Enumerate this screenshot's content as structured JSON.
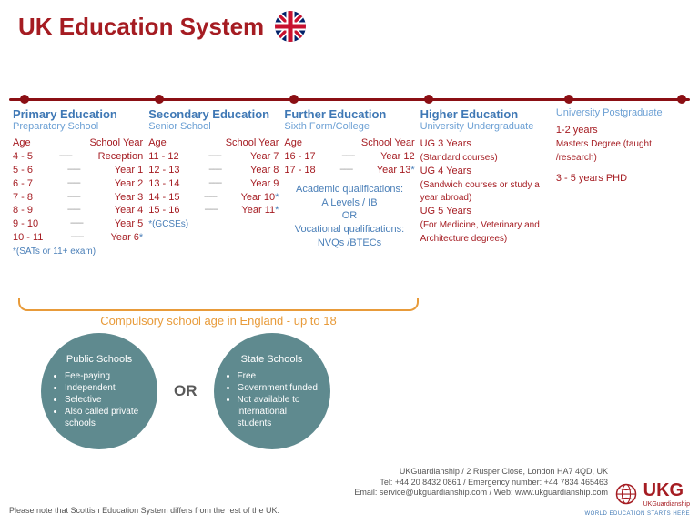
{
  "colors": {
    "title": "#a51c22",
    "timeline": "#8b0f14",
    "stage_title": "#3f78b5",
    "stage_sub": "#6ca0d4",
    "text_dark": "#a51c22",
    "text_blue": "#4a7fb8",
    "brace": "#e89b3a",
    "brace_text": "#e89b3a",
    "circle_bg": "#5f8a8f",
    "circle_text": "#ffffff",
    "or": "#5a5a5a",
    "footer": "#555555",
    "logo": "#a51c22",
    "logo_tag": "#3f78b5"
  },
  "title": "UK Education System",
  "stages": [
    {
      "title": "Primary Education",
      "sub": "Preparatory School",
      "age_label": "Age",
      "year_label": "School Year",
      "rows": [
        {
          "age": "4 - 5",
          "yr": "Reception"
        },
        {
          "age": "5 - 6",
          "yr": "Year 1"
        },
        {
          "age": "6 - 7",
          "yr": "Year 2"
        },
        {
          "age": "7 - 8",
          "yr": "Year 3"
        },
        {
          "age": "8 - 9",
          "yr": "Year 4"
        },
        {
          "age": "9 - 10",
          "yr": "Year 5"
        },
        {
          "age": "10 - 11",
          "yr": "Year 6",
          "star": true
        }
      ],
      "note": "*(SATs or 11+ exam)"
    },
    {
      "title": "Secondary Education",
      "sub": "Senior School",
      "age_label": "Age",
      "year_label": "School Year",
      "rows": [
        {
          "age": "11 - 12",
          "yr": "Year 7"
        },
        {
          "age": "12 - 13",
          "yr": "Year 8"
        },
        {
          "age": "13 - 14",
          "yr": "Year 9"
        },
        {
          "age": "14 - 15",
          "yr": "Year 10",
          "star": true
        },
        {
          "age": "15 - 16",
          "yr": "Year 11",
          "star": true
        }
      ],
      "note": "*(GCSEs)"
    },
    {
      "title": "Further Education",
      "sub": "Sixth Form/College",
      "age_label": "Age",
      "year_label": "School Year",
      "rows": [
        {
          "age": "16 - 17",
          "yr": "Year 12"
        },
        {
          "age": "17 - 18",
          "yr": "Year 13",
          "star": true
        }
      ],
      "quals": {
        "acad_lbl": "Academic qualifications:",
        "acad": "A Levels / IB",
        "or": "OR",
        "voc_lbl": "Vocational qualifications:",
        "voc": "NVQs /BTECs"
      }
    },
    {
      "title": "Higher Education",
      "sub": "University Undergraduate",
      "ug": [
        {
          "h": "UG 3 Years",
          "d": "(Standard courses)"
        },
        {
          "h": "UG 4 Years",
          "d": "(Sandwich courses or study a year abroad)"
        },
        {
          "h": "UG 5 Years",
          "d": "(For Medicine, Veterinary and Architecture degrees)"
        }
      ]
    },
    {
      "title": "",
      "sub": "University Postgraduate",
      "pg": [
        {
          "h": "1-2 years",
          "d": "Masters Degree (taught /research)"
        },
        {
          "h": "3 - 5 years PHD",
          "d": ""
        }
      ]
    }
  ],
  "compulsory": "Compulsory school age in England - up to 18",
  "schooltypes": {
    "public": {
      "title": "Public Schools",
      "items": [
        "Fee-paying",
        "Independent",
        "Selective",
        "Also called private schools"
      ]
    },
    "or": "OR",
    "state": {
      "title": "State Schools",
      "items": [
        "Free",
        "Government funded",
        "Not available to international students"
      ]
    }
  },
  "footer": {
    "l1": "UKGuardianship / 2 Rusper Close, London HA7 4QD, UK",
    "l2": "Tel: +44 20 8432 0861 / Emergency number: +44 7834 465463",
    "l3": "Email: service@ukguardianship.com / Web: www.ukguardianship.com",
    "note": "Please note that Scottish Education System differs from the rest of the UK."
  },
  "logo": {
    "text": "UKG",
    "brand": "UKGuardianship",
    "tag": "WORLD EDUCATION STARTS HERE"
  }
}
